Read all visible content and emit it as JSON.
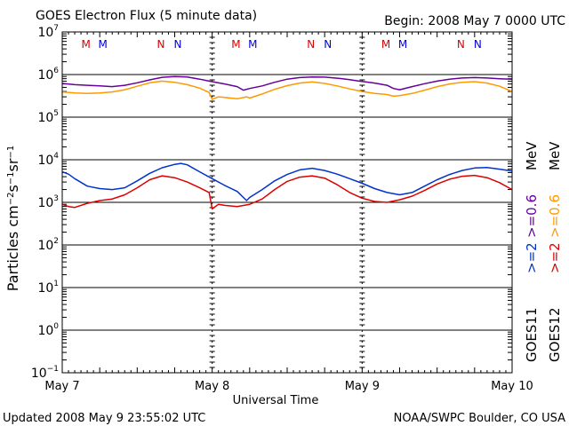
{
  "header": {
    "title": "GOES Electron Flux (5 minute data)",
    "begin": "Begin: 2008 May 7 0000 UTC"
  },
  "footer": {
    "updated": "Updated 2008 May  9 23:55:02 UTC",
    "source": "NOAA/SWPC Boulder, CO USA"
  },
  "right_legend": {
    "goes11_label": "GOES11",
    "goes12_label": "GOES12",
    "goes11_ge2": ">=2",
    "goes11_ge06": ">=0.6",
    "goes11_mev": "MeV",
    "goes12_ge2": ">=2",
    "goes12_ge06": ">=0.6",
    "goes12_mev": "MeV"
  },
  "chart_data": {
    "type": "line",
    "title": "GOES Electron Flux (5 minute data)",
    "xlabel": "Universal Time",
    "ylabel": "Particles cm⁻²s⁻¹sr⁻¹",
    "x_unit": "hours since 2008 May 7 0000 UTC",
    "xlim": [
      0,
      72
    ],
    "x_tick_labels": [
      {
        "x": 0,
        "label": "May 7"
      },
      {
        "x": 24,
        "label": "May 8"
      },
      {
        "x": 48,
        "label": "May 9"
      },
      {
        "x": 72,
        "label": "May 10"
      }
    ],
    "y_scale": "log",
    "ylim": [
      0.1,
      10000000
    ],
    "y_ticks": [
      {
        "value": 10000000,
        "base": "10",
        "exp": "7"
      },
      {
        "value": 1000000,
        "base": "10",
        "exp": "6"
      },
      {
        "value": 100000,
        "base": "10",
        "exp": "5"
      },
      {
        "value": 10000,
        "base": "10",
        "exp": "4"
      },
      {
        "value": 1000,
        "base": "10",
        "exp": "3"
      },
      {
        "value": 100,
        "base": "10",
        "exp": "2"
      },
      {
        "value": 10,
        "base": "10",
        "exp": "1"
      },
      {
        "value": 1,
        "base": "10",
        "exp": "0"
      },
      {
        "value": 0.1,
        "base": "10",
        "exp": "−1"
      }
    ],
    "threshold_line": 1000,
    "midnight_markers": [
      0,
      24,
      48,
      72
    ],
    "local_time_markers": [
      {
        "label": "M",
        "x": 3.8,
        "color": "#dd0000"
      },
      {
        "label": "M",
        "x": 6.5,
        "color": "#0000dd"
      },
      {
        "label": "N",
        "x": 15.8,
        "color": "#dd0000"
      },
      {
        "label": "N",
        "x": 18.5,
        "color": "#0000dd"
      },
      {
        "label": "M",
        "x": 27.8,
        "color": "#dd0000"
      },
      {
        "label": "M",
        "x": 30.5,
        "color": "#0000dd"
      },
      {
        "label": "N",
        "x": 39.8,
        "color": "#dd0000"
      },
      {
        "label": "N",
        "x": 42.5,
        "color": "#0000dd"
      },
      {
        "label": "M",
        "x": 51.8,
        "color": "#dd0000"
      },
      {
        "label": "M",
        "x": 54.5,
        "color": "#0000dd"
      },
      {
        "label": "N",
        "x": 63.8,
        "color": "#dd0000"
      },
      {
        "label": "N",
        "x": 66.5,
        "color": "#0000dd"
      }
    ],
    "series": [
      {
        "name": "GOES11 >=0.6 MeV",
        "color": "#660099",
        "x": [
          0,
          2,
          4,
          6,
          8,
          10,
          12,
          14,
          16,
          18,
          20,
          22,
          23.5,
          24,
          26,
          28,
          29,
          30,
          32,
          34,
          36,
          38,
          40,
          42,
          44,
          46,
          47.5,
          48,
          50,
          52,
          53,
          54,
          56,
          58,
          60,
          62,
          64,
          66,
          68,
          70,
          72
        ],
        "y": [
          620000,
          580000,
          560000,
          540000,
          520000,
          560000,
          640000,
          750000,
          860000,
          900000,
          880000,
          780000,
          700000,
          680000,
          600000,
          520000,
          430000,
          470000,
          540000,
          660000,
          780000,
          850000,
          880000,
          870000,
          820000,
          760000,
          700000,
          690000,
          630000,
          560000,
          470000,
          440000,
          520000,
          610000,
          700000,
          780000,
          830000,
          850000,
          830000,
          800000,
          780000
        ]
      },
      {
        "name": "GOES12 >=0.6 MeV",
        "color": "#ff9900",
        "x": [
          0,
          2,
          4,
          6,
          8,
          10,
          12,
          14,
          16,
          18,
          20,
          22,
          23.5,
          24,
          25,
          26,
          28,
          29.5,
          30,
          32,
          34,
          36,
          38,
          40,
          42,
          44,
          46,
          48,
          50,
          52,
          53,
          54,
          56,
          58,
          60,
          62,
          64,
          66,
          68,
          70,
          72
        ],
        "y": [
          390000,
          370000,
          360000,
          370000,
          390000,
          440000,
          530000,
          640000,
          700000,
          660000,
          580000,
          480000,
          380000,
          260000,
          300000,
          290000,
          270000,
          300000,
          280000,
          350000,
          450000,
          550000,
          630000,
          670000,
          620000,
          540000,
          460000,
          400000,
          360000,
          340000,
          310000,
          320000,
          360000,
          430000,
          520000,
          600000,
          660000,
          680000,
          630000,
          530000,
          400000
        ]
      },
      {
        "name": "GOES11 >=2 MeV",
        "color": "#0033cc",
        "x": [
          0,
          1,
          2,
          4,
          6,
          8,
          10,
          12,
          14,
          16,
          18,
          19,
          20,
          22,
          24,
          26,
          28,
          29.5,
          30,
          32,
          34,
          36,
          38,
          40,
          42,
          44,
          46,
          48,
          50,
          52,
          54,
          56,
          58,
          60,
          62,
          64,
          66,
          68,
          70,
          72
        ],
        "y": [
          5200,
          4600,
          3600,
          2400,
          2100,
          2000,
          2200,
          3200,
          4800,
          6500,
          7800,
          8200,
          7600,
          5200,
          3600,
          2500,
          1800,
          1100,
          1300,
          2000,
          3200,
          4500,
          5800,
          6300,
          5600,
          4600,
          3600,
          2800,
          2100,
          1700,
          1500,
          1700,
          2400,
          3400,
          4500,
          5600,
          6400,
          6600,
          6000,
          5400
        ]
      },
      {
        "name": "GOES12 >=2 MeV",
        "color": "#dd0000",
        "x": [
          0,
          1,
          2,
          4,
          6,
          8,
          10,
          12,
          14,
          16,
          18,
          20,
          22,
          23.5,
          24,
          25,
          26,
          28,
          30,
          32,
          34,
          36,
          38,
          40,
          42,
          44,
          46,
          48,
          50,
          52,
          54,
          56,
          58,
          60,
          62,
          64,
          66,
          68,
          70,
          72
        ],
        "y": [
          900,
          800,
          760,
          950,
          1100,
          1200,
          1500,
          2200,
          3400,
          4200,
          3800,
          3000,
          2200,
          1700,
          700,
          900,
          850,
          800,
          900,
          1200,
          2000,
          3100,
          3900,
          4200,
          3700,
          2600,
          1700,
          1250,
          1050,
          1000,
          1150,
          1400,
          1900,
          2700,
          3500,
          4100,
          4300,
          3800,
          2900,
          2000
        ]
      }
    ]
  }
}
